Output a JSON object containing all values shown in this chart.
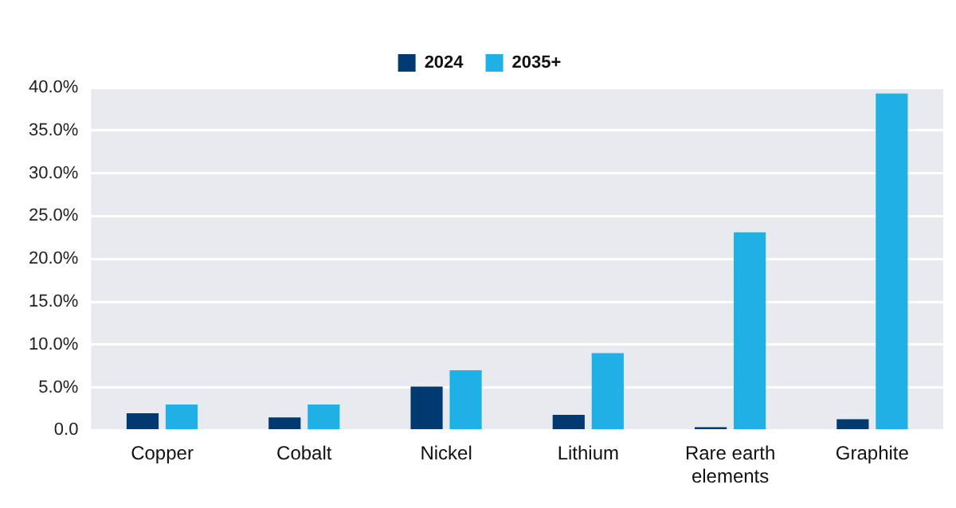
{
  "chart_data": {
    "type": "bar",
    "categories": [
      "Copper",
      "Cobalt",
      "Nickel",
      "Lithium",
      "Rare earth elements",
      "Graphite"
    ],
    "series": [
      {
        "name": "2024",
        "color": "#003a70",
        "values": [
          2.0,
          1.5,
          5.1,
          1.8,
          0.1,
          1.3
        ]
      },
      {
        "name": "2035+",
        "color": "#1fb1e6",
        "values": [
          3.0,
          3.0,
          7.0,
          9.0,
          23.1,
          39.3
        ]
      }
    ],
    "ylim": [
      0,
      40
    ],
    "yticks": [
      {
        "value": 0,
        "label": "0.0"
      },
      {
        "value": 5,
        "label": "5.0%"
      },
      {
        "value": 10,
        "label": "10.0%"
      },
      {
        "value": 15,
        "label": "15.0%"
      },
      {
        "value": 20,
        "label": "20.0%"
      },
      {
        "value": 25,
        "label": "25.0%"
      },
      {
        "value": 30,
        "label": "30.0%"
      },
      {
        "value": 35,
        "label": "35.0%"
      },
      {
        "value": 40,
        "label": "40.0%"
      }
    ],
    "grid": "y",
    "legend": "top"
  }
}
